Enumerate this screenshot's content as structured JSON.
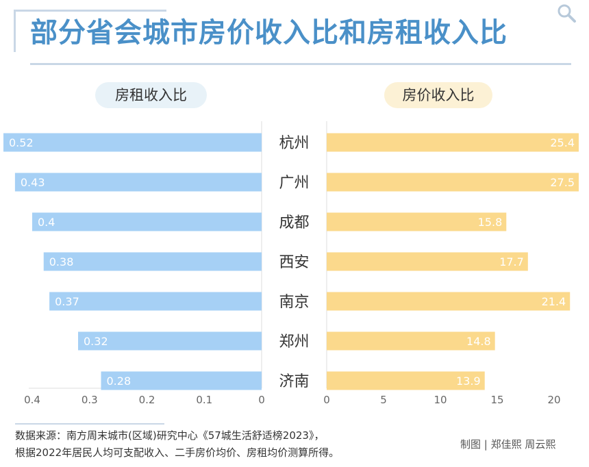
{
  "title": "部分省会城市房价收入比和房租收入比",
  "labels": {
    "left": "房租收入比",
    "right": "房价收入比"
  },
  "chart_data": {
    "type": "bar",
    "title": "部分省会城市房价收入比和房租收入比",
    "categories": [
      "杭州",
      "广州",
      "成都",
      "西安",
      "南京",
      "郑州",
      "济南"
    ],
    "series": [
      {
        "name": "房租收入比",
        "values": [
          0.52,
          0.43,
          0.4,
          0.38,
          0.37,
          0.32,
          0.28
        ],
        "value_labels": [
          "0.52",
          "0.43",
          "0.4",
          "0.38",
          "0.37",
          "0.32",
          "0.28"
        ],
        "color": "#a6d0f5",
        "xlim": [
          0,
          0.4
        ],
        "reversed": true,
        "ticks": [
          "0",
          "0.1",
          "0.2",
          "0.3",
          "0.4"
        ]
      },
      {
        "name": "房价收入比",
        "values": [
          25.4,
          27.5,
          15.8,
          17.7,
          21.4,
          14.8,
          13.9
        ],
        "value_labels": [
          "25.4",
          "27.5",
          "15.8",
          "17.7",
          "21.4",
          "14.8",
          "13.9"
        ],
        "color": "#fbd98c",
        "xlim": [
          0,
          20
        ],
        "ticks": [
          "0",
          "5",
          "10",
          "15",
          "20"
        ]
      }
    ],
    "grid": false,
    "legend": "top"
  },
  "footer": {
    "source_line1": "数据来源：南方周末城市(区域)研究中心《57城生活舒适榜2023》，",
    "source_line2": "根据2022年居民人均可支配收入、二手房价均价、房租均价测算所得。",
    "credit": "制图 | 郑佳熙 周云熙"
  },
  "colors": {
    "title": "#4a90c8",
    "rent_bar": "#a6d0f5",
    "price_bar": "#fbd98c"
  },
  "icons": {
    "corner": "search-icon"
  }
}
